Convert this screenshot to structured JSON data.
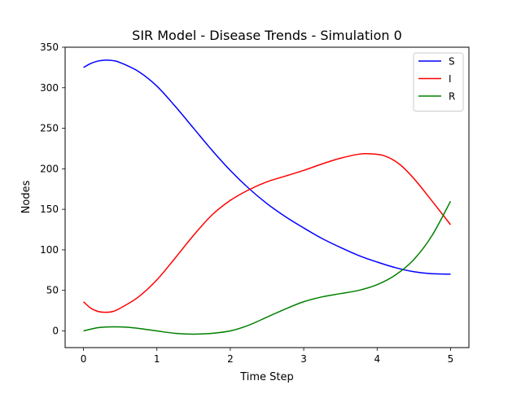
{
  "chart_data": {
    "type": "line",
    "title": "SIR Model - Disease Trends - Simulation 0",
    "xlabel": "Time Step",
    "ylabel": "Nodes",
    "xlim": [
      -0.25,
      5.25
    ],
    "ylim": [
      -20.6,
      350
    ],
    "xticks": [
      0,
      1,
      2,
      3,
      4,
      5
    ],
    "yticks": [
      0,
      50,
      100,
      150,
      200,
      250,
      300,
      350
    ],
    "grid": false,
    "legend": "top-right",
    "series": [
      {
        "name": "S",
        "color": "#0000ff",
        "x": [
          0,
          0.1,
          0.2,
          0.3,
          0.4,
          0.5,
          0.75,
          1.0,
          1.25,
          1.5,
          1.75,
          2.0,
          2.25,
          2.5,
          2.75,
          3.0,
          3.25,
          3.5,
          3.75,
          4.0,
          4.25,
          4.5,
          4.75,
          5.0
        ],
        "values": [
          325,
          330,
          333,
          334,
          333.5,
          331,
          320,
          302,
          277,
          250,
          223,
          198,
          176,
          157,
          141,
          127,
          114,
          103,
          93,
          85,
          78,
          73,
          70.5,
          70
        ]
      },
      {
        "name": "I",
        "color": "#ff0000",
        "x": [
          0,
          0.1,
          0.2,
          0.3,
          0.4,
          0.5,
          0.75,
          1.0,
          1.25,
          1.5,
          1.75,
          2.0,
          2.25,
          2.5,
          2.75,
          3.0,
          3.25,
          3.5,
          3.75,
          3.9,
          4.1,
          4.3,
          4.5,
          4.75,
          5.0
        ],
        "values": [
          36,
          28,
          24,
          23,
          24,
          28,
          42,
          63,
          90,
          118,
          143,
          161,
          174,
          184,
          191,
          198,
          206,
          213,
          218,
          218.5,
          216,
          206,
          188,
          160,
          131
        ]
      },
      {
        "name": "R",
        "color": "#008000",
        "x": [
          0,
          0.2,
          0.4,
          0.6,
          0.8,
          1.0,
          1.25,
          1.5,
          1.75,
          2.0,
          2.25,
          2.5,
          2.75,
          3.0,
          3.25,
          3.5,
          3.75,
          4.0,
          4.25,
          4.5,
          4.75,
          5.0
        ],
        "values": [
          0,
          4,
          5,
          4.5,
          2.5,
          0,
          -3,
          -4,
          -3,
          0,
          7,
          17,
          27,
          36,
          42,
          46,
          50,
          57,
          69,
          88,
          118,
          160
        ]
      }
    ]
  }
}
